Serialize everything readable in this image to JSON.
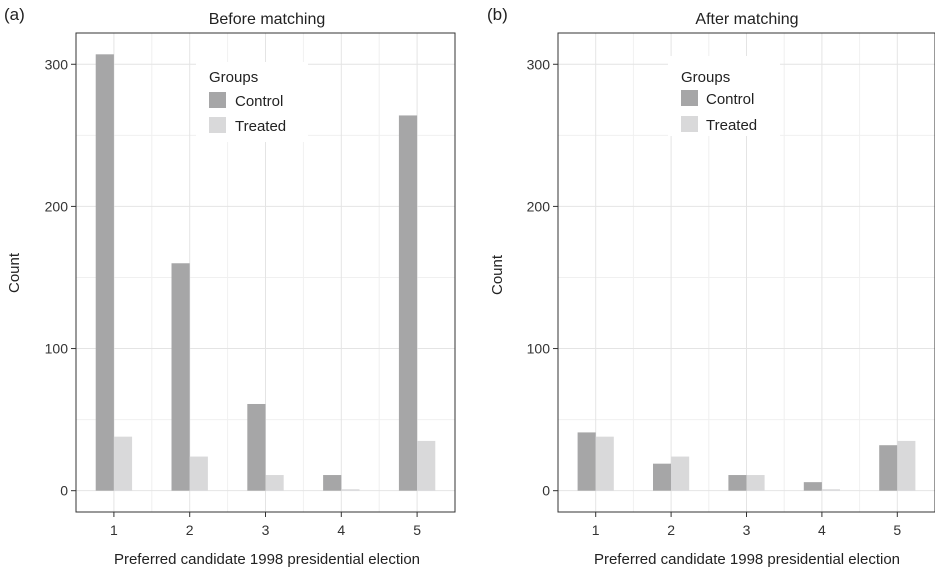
{
  "colors": {
    "control": "#a6a6a7",
    "treated": "#d9d9da"
  },
  "chart_data": [
    {
      "type": "bar",
      "panel_label": "(a)",
      "title": "Before matching",
      "xlabel": "Preferred candidate 1998 presidential election",
      "ylabel": "Count",
      "categories": [
        "1",
        "2",
        "3",
        "4",
        "5"
      ],
      "ylim": [
        -15,
        322
      ],
      "yticks": [
        0,
        100,
        200,
        300
      ],
      "grid": true,
      "legend": {
        "title": "Groups",
        "position": "top-center"
      },
      "series": [
        {
          "name": "Control",
          "values": [
            307,
            160,
            61,
            11,
            264
          ]
        },
        {
          "name": "Treated",
          "values": [
            38,
            24,
            11,
            1,
            35
          ]
        }
      ]
    },
    {
      "type": "bar",
      "panel_label": "(b)",
      "title": "After matching",
      "xlabel": "Preferred candidate 1998 presidential election",
      "ylabel": "Count",
      "categories": [
        "1",
        "2",
        "3",
        "4",
        "5"
      ],
      "ylim": [
        -15,
        322
      ],
      "yticks": [
        0,
        100,
        200,
        300
      ],
      "grid": true,
      "legend": {
        "title": "Groups",
        "position": "top-center"
      },
      "series": [
        {
          "name": "Control",
          "values": [
            41,
            19,
            11,
            6,
            32
          ]
        },
        {
          "name": "Treated",
          "values": [
            38,
            24,
            11,
            1,
            35
          ]
        }
      ]
    }
  ]
}
